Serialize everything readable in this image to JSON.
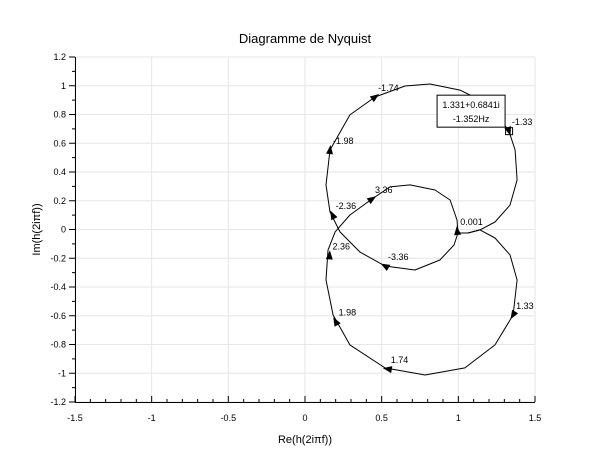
{
  "chart_data": {
    "type": "line",
    "title": "Diagramme de Nyquist",
    "xlabel": "Re(h(2iπf))",
    "ylabel": "Im(h(2iπf))",
    "xlim": [
      -1.5,
      1.5
    ],
    "ylim": [
      -1.2,
      1.2
    ],
    "xticks": [
      -1.5,
      -1,
      -0.5,
      0,
      0.5,
      1,
      1.5
    ],
    "xtick_labels": [
      "-1.5",
      "-1",
      "-0.5",
      "0",
      "0.5",
      "1",
      "1.5"
    ],
    "yticks": [
      -1.2,
      -1,
      -0.8,
      -0.6,
      -0.4,
      -0.2,
      0,
      0.2,
      0.4,
      0.6,
      0.8,
      1,
      1.2
    ],
    "ytick_labels": [
      "-1.2",
      "-1",
      "-0.8",
      "-0.6",
      "-0.4",
      "-0.2",
      "0",
      "0.2",
      "0.4",
      "0.6",
      "0.8",
      "1",
      "1.2"
    ],
    "grid": true,
    "line_color": "#000000",
    "grid_color": "#e6e6e6",
    "series": [
      {
        "points": [
          [
            1.33,
            0.685
          ],
          [
            1.37,
            0.553
          ],
          [
            1.383,
            0.344
          ],
          [
            1.337,
            0.17
          ],
          [
            1.239,
            0.052
          ],
          [
            1.141,
            -0.003
          ],
          [
            1.063,
            -0.024
          ],
          [
            0.998,
            -0.024
          ],
          [
            0.972,
            -0.108
          ],
          [
            0.88,
            -0.212
          ],
          [
            0.717,
            -0.282
          ],
          [
            0.522,
            -0.254
          ],
          [
            0.359,
            -0.157
          ],
          [
            0.228,
            -0.017
          ],
          [
            0.163,
            0.122
          ],
          [
            0.137,
            0.31
          ],
          [
            0.163,
            0.553
          ],
          [
            0.293,
            0.797
          ],
          [
            0.457,
            0.922
          ],
          [
            0.652,
            0.998
          ],
          [
            0.815,
            1.012
          ],
          [
            1.011,
            0.97
          ],
          [
            1.207,
            0.866
          ],
          [
            1.33,
            0.685
          ]
        ]
      },
      {
        "points": [
          [
            0.998,
            -0.024
          ],
          [
            0.991,
            0.066
          ],
          [
            0.946,
            0.205
          ],
          [
            0.848,
            0.275
          ],
          [
            0.685,
            0.31
          ],
          [
            0.554,
            0.296
          ],
          [
            0.437,
            0.212
          ],
          [
            0.293,
            0.101
          ],
          [
            0.196,
            -0.017
          ],
          [
            0.15,
            -0.143
          ],
          [
            0.137,
            -0.351
          ],
          [
            0.183,
            -0.595
          ],
          [
            0.293,
            -0.803
          ],
          [
            0.522,
            -0.963
          ],
          [
            0.783,
            -1.012
          ],
          [
            1.043,
            -0.963
          ],
          [
            1.239,
            -0.803
          ],
          [
            1.357,
            -0.595
          ],
          [
            1.383,
            -0.351
          ],
          [
            1.337,
            -0.177
          ],
          [
            1.239,
            -0.059
          ],
          [
            1.141,
            -0.003
          ],
          [
            1.063,
            -0.024
          ],
          [
            0.998,
            -0.024
          ]
        ]
      }
    ],
    "frequency_marks": [
      {
        "label": "-1.74",
        "x": 0.457,
        "y": 0.922,
        "series": 0,
        "direction": "forward"
      },
      {
        "label": "-1.98",
        "x": 0.163,
        "y": 0.553,
        "series": 0,
        "direction": "forward"
      },
      {
        "label": "-2.36",
        "x": 0.18,
        "y": 0.1,
        "series": 0,
        "direction": "forward"
      },
      {
        "label": "-3.36",
        "x": 0.522,
        "y": -0.254,
        "series": 0,
        "direction": "forward"
      },
      {
        "label": "-1.33",
        "x": 1.33,
        "y": 0.685,
        "series": 0,
        "direction": "forward"
      },
      {
        "label": "0.001",
        "x": 0.993,
        "y": -0.01,
        "series": 1,
        "direction": "forward"
      },
      {
        "label": "3.36",
        "x": 0.437,
        "y": 0.212,
        "series": 1,
        "direction": "backward"
      },
      {
        "label": "2.36",
        "x": 0.16,
        "y": -0.18,
        "series": 1,
        "direction": "backward"
      },
      {
        "label": "1.98",
        "x": 0.2,
        "y": -0.64,
        "series": 1,
        "direction": "backward"
      },
      {
        "label": "1.74",
        "x": 0.54,
        "y": -0.97,
        "series": 1,
        "direction": "backward"
      },
      {
        "label": "1.33",
        "x": 1.357,
        "y": -0.595,
        "series": 1,
        "direction": "backward"
      }
    ],
    "datatip": {
      "x": 1.331,
      "y": 0.6841,
      "line1": "1.331+0.6841i",
      "line2": "-1.352Hz"
    }
  }
}
